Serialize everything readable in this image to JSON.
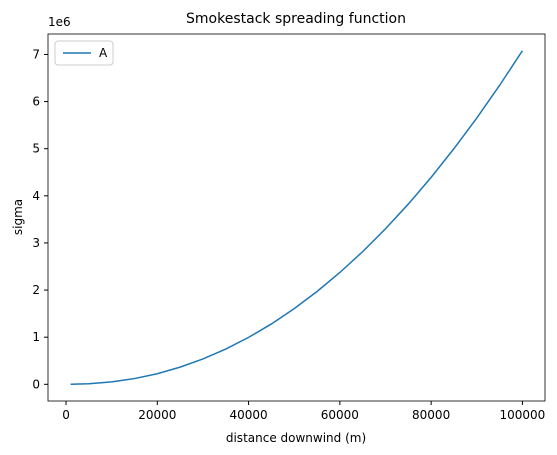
{
  "chart_data": {
    "type": "line",
    "title": "Smokestack spreading function",
    "xlabel": "distance downwind (m)",
    "ylabel": "sigma",
    "y_offset_label": "1e6",
    "x": [
      1000,
      5000,
      10000,
      15000,
      20000,
      25000,
      30000,
      35000,
      40000,
      45000,
      50000,
      55000,
      60000,
      65000,
      70000,
      75000,
      80000,
      85000,
      90000,
      95000,
      100000
    ],
    "series": [
      {
        "name": "A",
        "color": "#1f77b4",
        "values": [
          0.0004,
          0.0116,
          0.0513,
          0.122,
          0.225,
          0.365,
          0.538,
          0.748,
          0.996,
          1.281,
          1.607,
          1.97,
          2.373,
          2.816,
          3.301,
          3.825,
          4.392,
          5.001,
          5.651,
          6.344,
          7.08
        ]
      }
    ],
    "xlim": [
      -3950,
      104950
    ],
    "ylim": [
      -0.354,
      7.434
    ],
    "xticks": [
      0,
      20000,
      40000,
      60000,
      80000,
      100000
    ],
    "yticks": [
      0,
      1,
      2,
      3,
      4,
      5,
      6,
      7
    ],
    "legend": "upper left",
    "grid": false
  }
}
